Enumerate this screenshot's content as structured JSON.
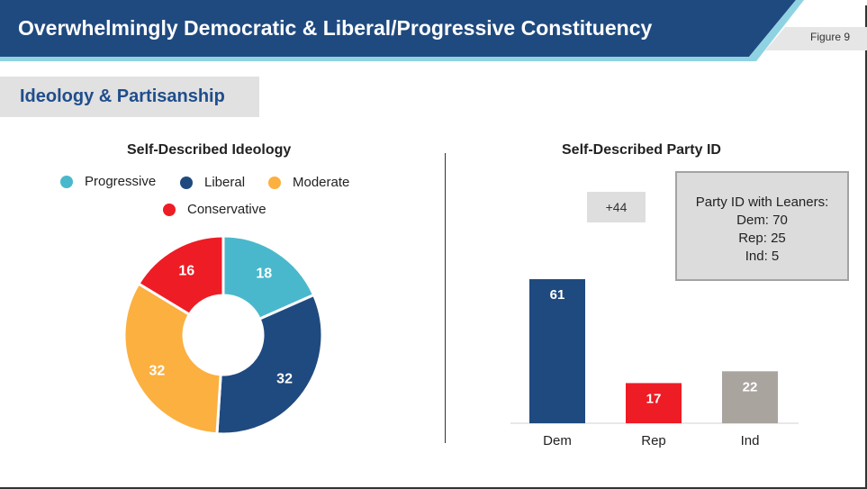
{
  "header": {
    "title": "Overwhelmingly Democratic & Liberal/Progressive Constituency",
    "figure_label": "Figure 9"
  },
  "section": {
    "title": "Ideology & Partisanship"
  },
  "colors": {
    "navy": "#1f4a7f",
    "teal": "#4ab8cc",
    "orange": "#fbb040",
    "red": "#ee1c25",
    "gray": "#aaa49f"
  },
  "chart_data": [
    {
      "type": "pie",
      "title": "Self-Described Ideology",
      "categories": [
        "Progressive",
        "Liberal",
        "Moderate",
        "Conservative"
      ],
      "values": [
        18,
        32,
        32,
        16
      ],
      "labels": [
        "18",
        "32",
        "32",
        "16"
      ],
      "colors": [
        "#4ab8cc",
        "#1f4a7f",
        "#fbb040",
        "#ee1c25"
      ],
      "legend": "top"
    },
    {
      "type": "bar",
      "title": "Self-Described Party ID",
      "categories": [
        "Dem",
        "Rep",
        "Ind"
      ],
      "values": [
        61,
        17,
        22
      ],
      "labels": [
        "61",
        "17",
        "22"
      ],
      "colors": [
        "#1f4a7f",
        "#ee1c25",
        "#aaa49f"
      ],
      "annotation": "+44",
      "ylim": [
        0,
        65
      ]
    }
  ],
  "leaners": {
    "title": "Party ID with Leaners:",
    "lines": [
      "Dem: 70",
      "Rep: 25",
      "Ind: 5"
    ]
  }
}
